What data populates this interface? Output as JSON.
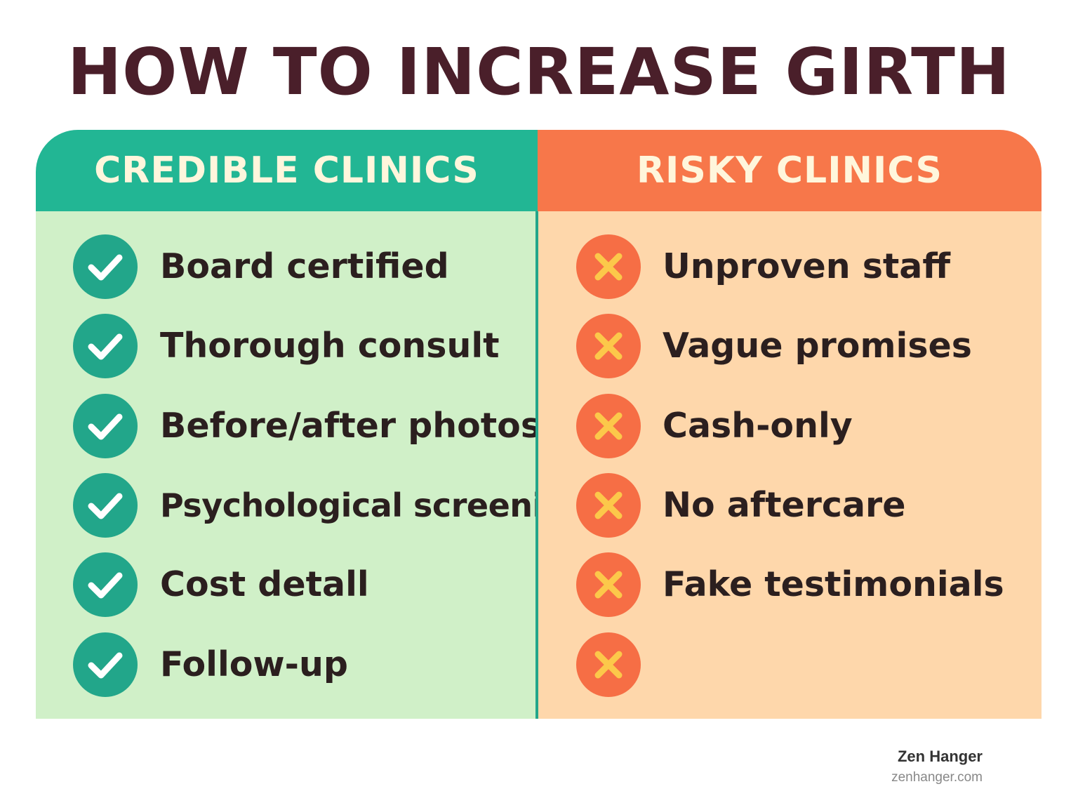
{
  "title": "HOW TO INCREASE GIRTH",
  "credible": {
    "heading": "CREDIBLE CLINICS",
    "icon": "check-icon",
    "accent": "#22b694",
    "items": [
      "Board certified",
      "Thorough consult",
      "Before/after photos",
      "Psychological screening",
      "Cost detall",
      "Follow-up"
    ]
  },
  "risky": {
    "heading": "RISKY CLINICS",
    "icon": "x-icon",
    "accent": "#f7774a",
    "items": [
      "Unproven staff",
      "Vague promises",
      "Cash-only",
      "No aftercare",
      "Fake testimonials",
      ""
    ]
  },
  "brand": {
    "name": "Zen Hanger",
    "url": "zenhanger.com"
  }
}
